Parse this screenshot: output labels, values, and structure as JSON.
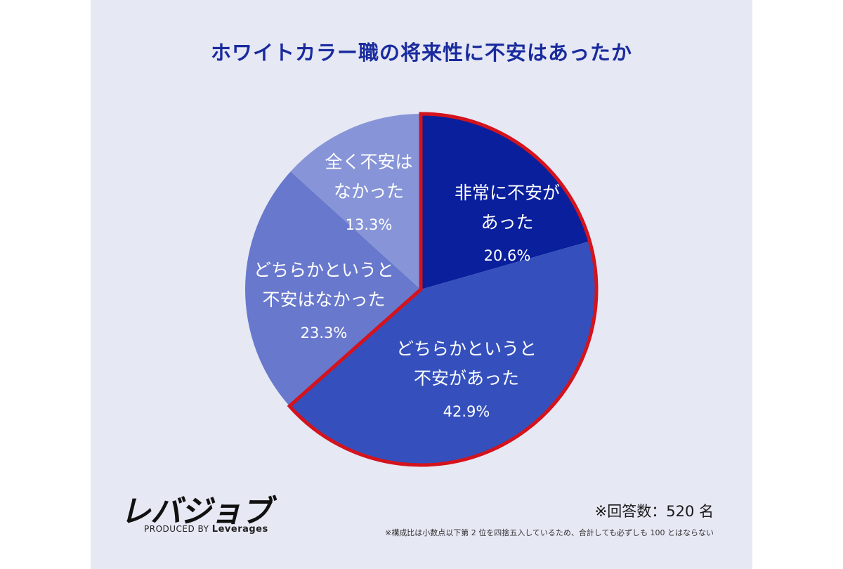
{
  "chart_data": {
    "type": "pie",
    "title": "ホワイトカラー職の将来性に不安はあったか",
    "slices": [
      {
        "label_lines": [
          "非常に不安が",
          "あった"
        ],
        "value": 20.6,
        "display": "20.6%",
        "color": "#0a1f9c"
      },
      {
        "label_lines": [
          "どちらかというと",
          "不安があった"
        ],
        "value": 42.9,
        "display": "42.9%",
        "color": "#3550bc"
      },
      {
        "label_lines": [
          "どちらかというと",
          "不安はなかった"
        ],
        "value": 23.3,
        "display": "23.3%",
        "color": "#6878cc"
      },
      {
        "label_lines": [
          "全く不安は",
          "なかった"
        ],
        "value": 13.3,
        "display": "13.3%",
        "color": "#8795d8"
      }
    ],
    "highlight": {
      "slices": [
        0,
        1
      ],
      "color": "#d4131c"
    },
    "start": "12 o'clock",
    "direction": "clockwise"
  },
  "brand": {
    "logo": "レバジョブ",
    "produced_by": "PRODUCED BY",
    "company": "Leverages"
  },
  "respondents": "※回答数：520 名",
  "footnote": "※構成比は小数点以下第 2 位を四捨五入しているため、合計しても必ずしも 100 とはならない"
}
